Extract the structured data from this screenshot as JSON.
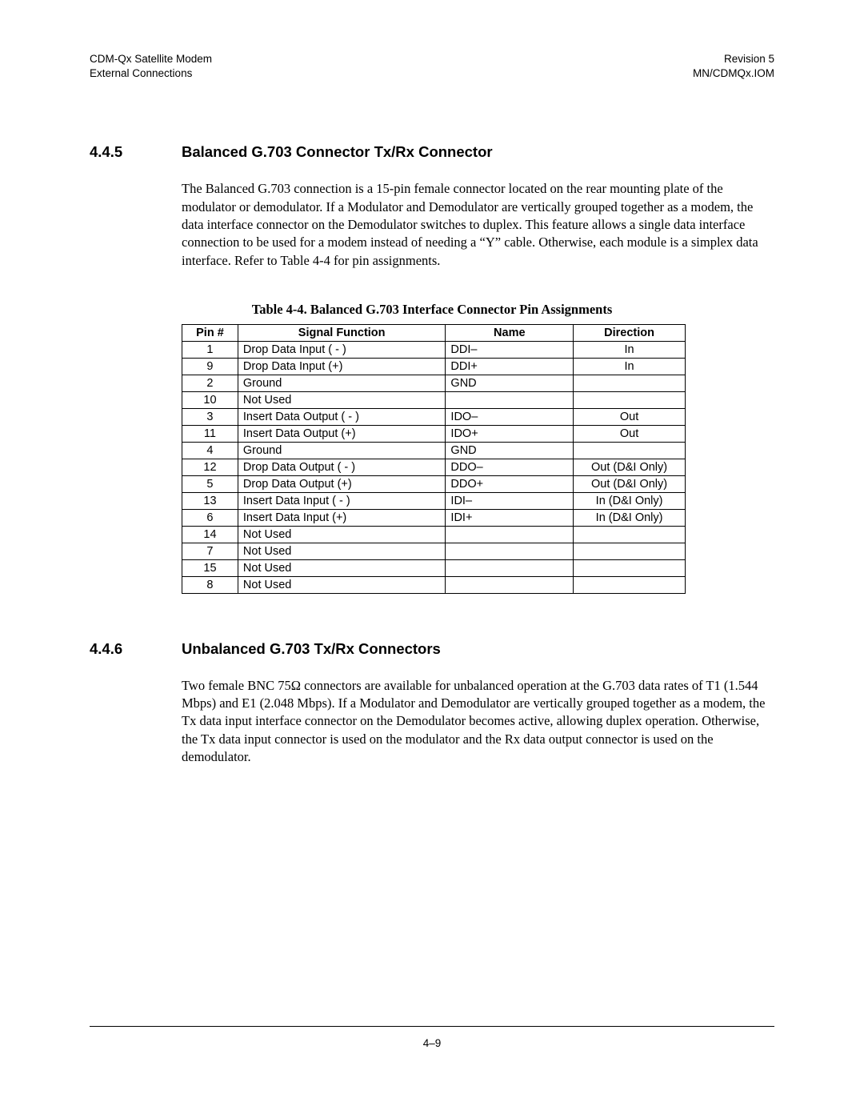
{
  "header": {
    "left_line1": "CDM-Qx Satellite Modem",
    "left_line2": "External Connections",
    "right_line1": "Revision 5",
    "right_line2": "MN/CDMQx.IOM"
  },
  "section_445": {
    "num": "4.4.5",
    "title": "Balanced G.703 Connector Tx/Rx Connector",
    "para": "The Balanced G.703 connection is a 15-pin female connector located on the rear mounting plate of the modulator or demodulator.  If a Modulator and Demodulator are vertically grouped together as a modem, the data interface connector on the Demodulator switches to duplex.  This feature allows a single data interface connection to be used for a modem instead of needing a “Y” cable.  Otherwise, each module is a simplex data interface.  Refer to Table 4-4 for pin assignments."
  },
  "table44": {
    "caption": "Table 4-4.  Balanced G.703 Interface Connector Pin Assignments",
    "headers": {
      "pin": "Pin #",
      "sig": "Signal Function",
      "name": "Name",
      "dir": "Direction"
    },
    "rows": [
      {
        "pin": "1",
        "sig": "Drop Data Input ( - )",
        "name": "DDI–",
        "dir": "In"
      },
      {
        "pin": "9",
        "sig": "Drop Data Input (+)",
        "name": "DDI+",
        "dir": "In"
      },
      {
        "pin": "2",
        "sig": "Ground",
        "name": "GND",
        "dir": ""
      },
      {
        "pin": "10",
        "sig": "Not Used",
        "name": "",
        "dir": ""
      },
      {
        "pin": "3",
        "sig": "Insert Data Output ( - )",
        "name": "IDO–",
        "dir": "Out"
      },
      {
        "pin": "11",
        "sig": "Insert Data Output (+)",
        "name": "IDO+",
        "dir": "Out"
      },
      {
        "pin": "4",
        "sig": "Ground",
        "name": "GND",
        "dir": ""
      },
      {
        "pin": "12",
        "sig": "Drop Data Output ( - )",
        "name": "DDO–",
        "dir": "Out (D&I Only)"
      },
      {
        "pin": "5",
        "sig": "Drop Data Output (+)",
        "name": "DDO+",
        "dir": "Out (D&I Only)"
      },
      {
        "pin": "13",
        "sig": "Insert Data Input ( - )",
        "name": "IDI–",
        "dir": "In (D&I Only)"
      },
      {
        "pin": "6",
        "sig": "Insert Data Input (+)",
        "name": "IDI+",
        "dir": "In (D&I Only)"
      },
      {
        "pin": "14",
        "sig": "Not Used",
        "name": "",
        "dir": ""
      },
      {
        "pin": "7",
        "sig": "Not Used",
        "name": "",
        "dir": ""
      },
      {
        "pin": "15",
        "sig": "Not Used",
        "name": "",
        "dir": ""
      },
      {
        "pin": "8",
        "sig": "Not Used",
        "name": "",
        "dir": ""
      }
    ]
  },
  "section_446": {
    "num": "4.4.6",
    "title": "Unbalanced G.703 Tx/Rx  Connectors",
    "para": "Two female BNC 75Ω connectors are available for unbalanced operation at the G.703 data rates of T1 (1.544 Mbps) and E1 (2.048 Mbps).  If a Modulator and Demodulator are vertically grouped together as a modem, the Tx data input interface connector on the Demodulator becomes active, allowing duplex operation.  Otherwise, the Tx data input connector is used on the modulator and the Rx data output connector is used on the demodulator."
  },
  "footer": {
    "page": "4–9"
  }
}
